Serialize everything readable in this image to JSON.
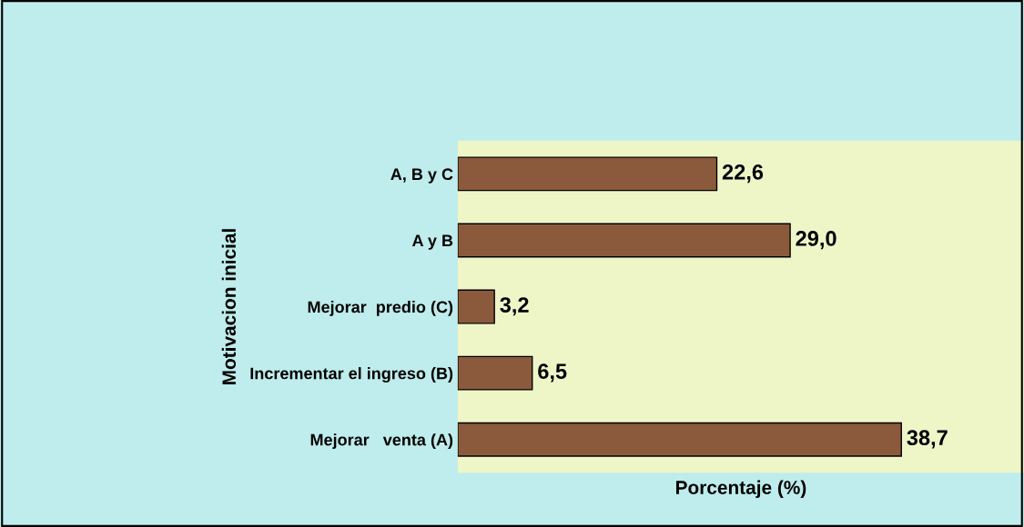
{
  "chart_data": {
    "type": "bar",
    "orientation": "horizontal",
    "categories": [
      "A, B y C",
      "A y B",
      "Mejorar  predio (C)",
      "Incrementar el ingreso (B)",
      "Mejorar   venta (A)"
    ],
    "values": [
      22.6,
      29.0,
      3.2,
      6.5,
      38.7
    ],
    "value_labels": [
      "22,6",
      "29,0",
      "3,2",
      "6,5",
      "38,7"
    ],
    "color": "#8b5a3c",
    "xlim": [
      0,
      49.4
    ],
    "xlabel": "Porcentaje (%)",
    "ylabel": "Motivacion inicial",
    "tick_labels": "y",
    "grid": false,
    "legend": false
  }
}
